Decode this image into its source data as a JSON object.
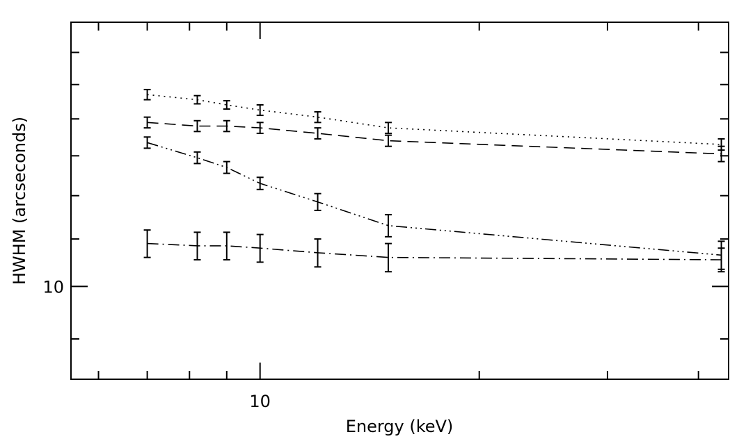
{
  "chart_data": {
    "type": "line",
    "title": "",
    "xlabel": "Energy (keV)",
    "ylabel": "HWHM (arcseconds)",
    "x_scale": "log",
    "y_scale": "log",
    "xlim": [
      5.5,
      44
    ],
    "ylim": [
      8.3,
      17.0
    ],
    "x_major_ticks": [
      10
    ],
    "x_minor_ticks": [
      6,
      7,
      8,
      9,
      20,
      30,
      40
    ],
    "y_major_ticks": [
      10
    ],
    "y_minor_ticks": [
      9,
      11,
      12,
      13,
      14,
      15,
      16
    ],
    "x_tick_labels": [
      "10"
    ],
    "y_tick_labels": [
      "10"
    ],
    "x": [
      7,
      8.2,
      9,
      10,
      12,
      15,
      43
    ],
    "series": [
      {
        "name": "dotted",
        "dash": "2,6",
        "values": [
          14.7,
          14.55,
          14.4,
          14.25,
          14.05,
          13.75,
          13.3
        ],
        "errors": [
          0.15,
          0.12,
          0.12,
          0.15,
          0.15,
          0.15,
          0.15
        ]
      },
      {
        "name": "dashed",
        "dash": "16,9",
        "values": [
          13.9,
          13.8,
          13.8,
          13.75,
          13.6,
          13.4,
          13.05
        ],
        "errors": [
          0.15,
          0.15,
          0.15,
          0.15,
          0.15,
          0.15,
          0.2
        ]
      },
      {
        "name": "dash-triple-dot",
        "dash": "16,5,2,5,2,5,2,5",
        "values": [
          13.35,
          12.95,
          12.7,
          12.3,
          11.85,
          11.3,
          10.65
        ],
        "errors": [
          0.15,
          0.15,
          0.15,
          0.15,
          0.2,
          0.25,
          0.3
        ]
      },
      {
        "name": "dash-dot",
        "dash": "16,6,2,6",
        "values": [
          10.9,
          10.85,
          10.85,
          10.8,
          10.7,
          10.6,
          10.55
        ],
        "errors": [
          0.3,
          0.3,
          0.3,
          0.3,
          0.3,
          0.3,
          0.25
        ]
      }
    ]
  }
}
